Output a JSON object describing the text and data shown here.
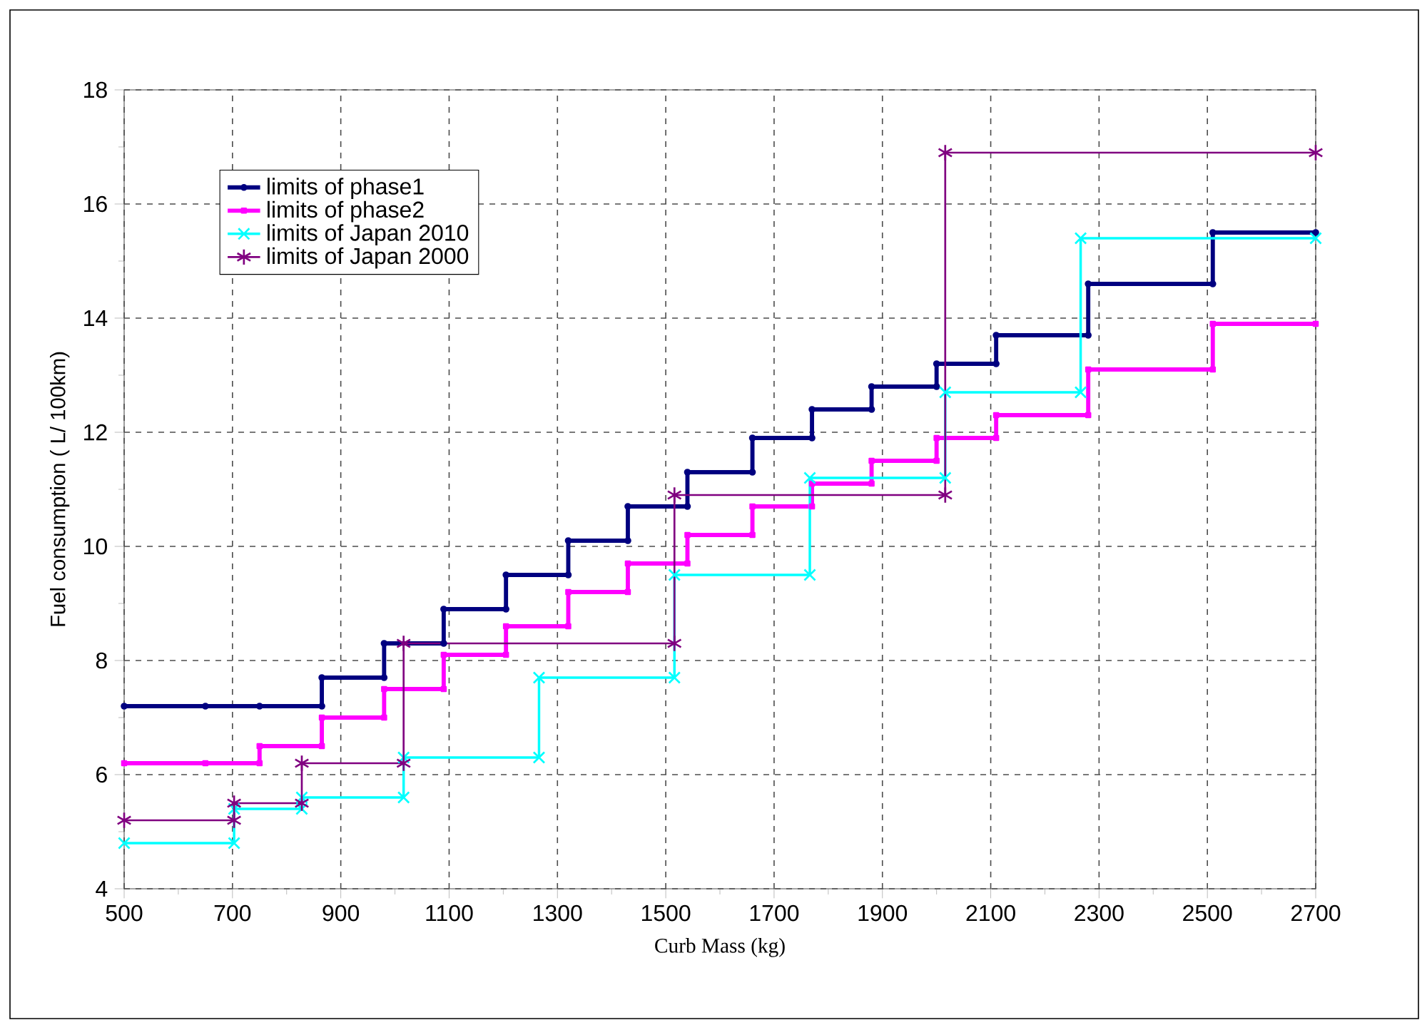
{
  "chart_data": {
    "type": "line",
    "xlabel": "Curb Mass (kg)",
    "ylabel": "Fuel consumption ( L/ 100km)",
    "xlim": [
      500,
      2700
    ],
    "xticks": [
      500,
      700,
      900,
      1100,
      1300,
      1500,
      1700,
      1900,
      2100,
      2300,
      2500,
      2700
    ],
    "ylim": [
      4,
      18
    ],
    "yticks": [
      4,
      6,
      8,
      10,
      12,
      14,
      16,
      18
    ],
    "grid": true,
    "legend": "top left",
    "line_style": "solid",
    "series": [
      {
        "name": "limits of phase1",
        "color": "#000080",
        "marker": "circle",
        "x": [
          500,
          650,
          750,
          865,
          865,
          980,
          980,
          1090,
          1090,
          1205,
          1205,
          1320,
          1320,
          1430,
          1430,
          1540,
          1540,
          1660,
          1660,
          1770,
          1770,
          1880,
          1880,
          2000,
          2000,
          2110,
          2110,
          2280,
          2280,
          2510,
          2510,
          2700
        ],
        "values": [
          7.2,
          7.2,
          7.2,
          7.2,
          7.7,
          7.7,
          8.3,
          8.3,
          8.9,
          8.9,
          9.5,
          9.5,
          10.1,
          10.1,
          10.7,
          10.7,
          11.3,
          11.3,
          11.9,
          11.9,
          12.4,
          12.4,
          12.8,
          12.8,
          13.2,
          13.2,
          13.7,
          13.7,
          14.6,
          14.6,
          15.5,
          15.5
        ]
      },
      {
        "name": "limits of phase2",
        "color": "#ff00ff",
        "marker": "square",
        "x": [
          500,
          650,
          750,
          750,
          865,
          865,
          980,
          980,
          1090,
          1090,
          1205,
          1205,
          1320,
          1320,
          1430,
          1430,
          1540,
          1540,
          1660,
          1660,
          1770,
          1770,
          1880,
          1880,
          2000,
          2000,
          2110,
          2110,
          2280,
          2280,
          2510,
          2510,
          2700
        ],
        "values": [
          6.2,
          6.2,
          6.2,
          6.5,
          6.5,
          7.0,
          7.0,
          7.5,
          7.5,
          8.1,
          8.1,
          8.6,
          8.6,
          9.2,
          9.2,
          9.7,
          9.7,
          10.2,
          10.2,
          10.7,
          10.7,
          11.1,
          11.1,
          11.5,
          11.5,
          11.9,
          11.9,
          12.3,
          12.3,
          13.1,
          13.1,
          13.9,
          13.9
        ]
      },
      {
        "name": "limits of Japan 2010",
        "color": "#00ffff",
        "marker": "cross",
        "x": [
          500,
          703,
          703,
          828,
          828,
          1016,
          1016,
          1266,
          1266,
          1516,
          1516,
          1766,
          1766,
          2016,
          2016,
          2266,
          2266,
          2700
        ],
        "values": [
          4.8,
          4.8,
          5.4,
          5.4,
          5.6,
          5.6,
          6.3,
          6.3,
          7.7,
          7.7,
          9.5,
          9.5,
          11.2,
          11.2,
          12.7,
          12.7,
          15.4,
          15.4
        ]
      },
      {
        "name": "limits of Japan 2000",
        "color": "#800080",
        "marker": "cross",
        "x": [
          500,
          703,
          703,
          828,
          828,
          1016,
          1016,
          1516,
          1516,
          2016,
          2016,
          2700
        ],
        "values": [
          5.2,
          5.2,
          5.5,
          5.5,
          6.2,
          6.2,
          8.3,
          8.3,
          10.9,
          10.9,
          16.9,
          16.9
        ]
      }
    ]
  }
}
